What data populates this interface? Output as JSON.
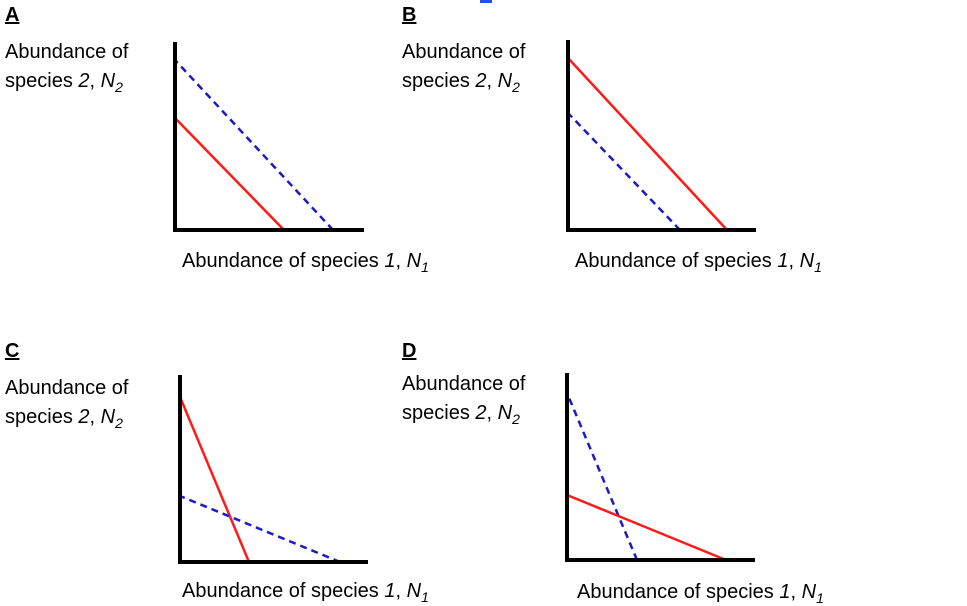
{
  "panels": [
    {
      "letter": "A",
      "ylabel_line1": "Abundance of",
      "ylabel_line2_prefix": "species ",
      "ylabel_line2_num": "2",
      "ylabel_line2_sep": ", ",
      "ylabel_var": "N",
      "ylabel_sub": "2",
      "xlabel_prefix": "Abundance of species ",
      "xlabel_num": "1",
      "xlabel_sep": ", ",
      "xlabel_var": "N",
      "xlabel_sub": "1"
    },
    {
      "letter": "B",
      "ylabel_line1": "Abundance of",
      "ylabel_line2_prefix": "species ",
      "ylabel_line2_num": "2",
      "ylabel_line2_sep": ", ",
      "ylabel_var": "N",
      "ylabel_sub": "2",
      "xlabel_prefix": "Abundance of species ",
      "xlabel_num": "1",
      "xlabel_sep": ", ",
      "xlabel_var": "N",
      "xlabel_sub": "1"
    },
    {
      "letter": "C",
      "ylabel_line1": "Abundance of",
      "ylabel_line2_prefix": "species ",
      "ylabel_line2_num": "2",
      "ylabel_line2_sep": ", ",
      "ylabel_var": "N",
      "ylabel_sub": "2",
      "xlabel_prefix": "Abundance of species ",
      "xlabel_num": "1",
      "xlabel_sep": ", ",
      "xlabel_var": "N",
      "xlabel_sub": "1"
    },
    {
      "letter": "D",
      "ylabel_line1": "Abundance of",
      "ylabel_line2_prefix": "species ",
      "ylabel_line2_num": "2",
      "ylabel_line2_sep": ", ",
      "ylabel_var": "N",
      "ylabel_sub": "2",
      "xlabel_prefix": "Abundance of species ",
      "xlabel_num": "1",
      "xlabel_sep": ", ",
      "xlabel_var": "N",
      "xlabel_sub": "1"
    }
  ],
  "colors": {
    "solid_line": "#ff1a1a",
    "dashed_line": "#1a1acc",
    "axis": "#000000"
  }
}
